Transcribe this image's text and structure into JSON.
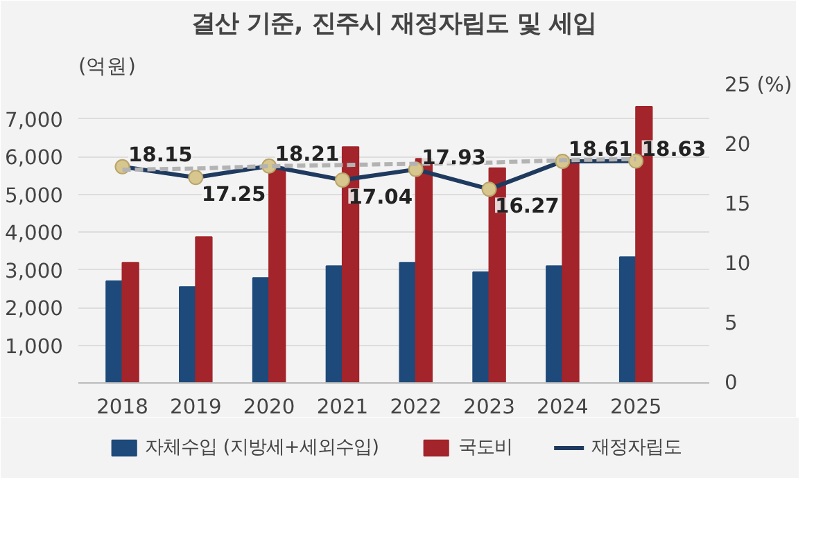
{
  "chart_data": {
    "type": "bar",
    "title": "결산 기준, 진주시 재정자립도 및 세입",
    "ylabel": "(억원)",
    "categories": [
      "2018",
      "2019",
      "2020",
      "2021",
      "2022",
      "2023",
      "2024",
      "2025"
    ],
    "series": [
      {
        "name": "자체수입 (지방세+세외수입)",
        "color": "#1d4a7a",
        "values": [
          2700,
          2550,
          2790,
          3100,
          3190,
          2940,
          3100,
          3340
        ]
      },
      {
        "name": "국도비",
        "color": "#a3242a",
        "values": [
          3190,
          3870,
          5670,
          6260,
          5950,
          5700,
          5920,
          7330
        ]
      },
      {
        "name": "재정자립도",
        "type": "line",
        "axis": "y2",
        "color": "#1f3a5f",
        "marker": "circle",
        "values": [
          18.15,
          17.25,
          18.21,
          17.04,
          17.93,
          16.27,
          18.61,
          18.63
        ],
        "value_labels": [
          "18.15",
          "17.25",
          "18.21",
          "17.04",
          "17.93",
          "16.27",
          "18.61",
          "18.63"
        ]
      },
      {
        "type": "line",
        "axis": "y2",
        "color": "#b3b3b3",
        "line_style": "dashed",
        "values": [
          17.9,
          18.0,
          18.2,
          18.3,
          18.4,
          18.5,
          18.7,
          18.8
        ]
      }
    ],
    "ylim": [
      0,
      7900
    ],
    "yticks": [
      {
        "value": 0,
        "label": null
      },
      {
        "value": 1000,
        "label": "1,000"
      },
      {
        "value": 2000,
        "label": "2,000"
      },
      {
        "value": 3000,
        "label": "3,000"
      },
      {
        "value": 4000,
        "label": "4,000"
      },
      {
        "value": 5000,
        "label": "5,000"
      },
      {
        "value": 6000,
        "label": "6,000"
      },
      {
        "value": 7000,
        "label": "7,000"
      }
    ],
    "y2lim": [
      0,
      25
    ],
    "y2ticks": [
      0,
      5,
      10,
      15,
      20,
      {
        "value": 25,
        "label": "25 (%)"
      }
    ],
    "grid": "y",
    "legend": "bottom"
  }
}
